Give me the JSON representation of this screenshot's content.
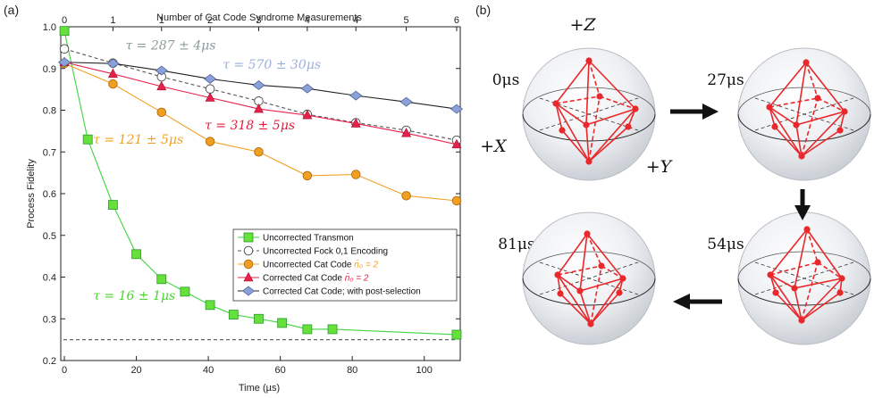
{
  "panel_a_label": "(a)",
  "panel_b_label": "(b)",
  "chart_data": {
    "type": "line",
    "title": "",
    "xlabel": "Time (µs)",
    "ylabel": "Process Fidelity",
    "top_xlabel": "Number of Cat Code Syndrome Measurements",
    "xlim": [
      -1,
      110
    ],
    "ylim": [
      0.2,
      1.0
    ],
    "xticks": [
      0,
      20,
      40,
      60,
      80,
      100
    ],
    "yticks": [
      0.2,
      0.3,
      0.4,
      0.5,
      0.6,
      0.7,
      0.8,
      0.9,
      1.0
    ],
    "top_ticks": [
      {
        "t": 0,
        "label": "0"
      },
      {
        "t": 13.5,
        "label": "1"
      },
      {
        "t": 27,
        "label": "1"
      },
      {
        "t": 40.5,
        "label": "2"
      },
      {
        "t": 54,
        "label": "3"
      },
      {
        "t": 67.5,
        "label": "4"
      },
      {
        "t": 81,
        "label": "4"
      },
      {
        "t": 95,
        "label": "5"
      },
      {
        "t": 109,
        "label": "6"
      }
    ],
    "baseline": 0.25,
    "legend_position": "lower-right",
    "series": [
      {
        "name": "Uncorrected Transmon",
        "color": "#3fd43f",
        "marker": "square",
        "fill": "#66e03a",
        "dashed": false,
        "x": [
          0,
          6.5,
          13.5,
          20,
          27,
          33.5,
          40.5,
          47,
          54,
          60.5,
          67.5,
          74.5,
          109
        ],
        "y": [
          0.99,
          0.73,
          0.573,
          0.455,
          0.395,
          0.365,
          0.333,
          0.31,
          0.3,
          0.29,
          0.275,
          0.275,
          0.262
        ]
      },
      {
        "name": "Uncorrected Fock 0,1 Encoding",
        "color": "#555555",
        "marker": "circle",
        "fill": "#ffffff",
        "dashed": true,
        "x": [
          0,
          13.5,
          27,
          40.5,
          54,
          67.5,
          81,
          95,
          109
        ],
        "y": [
          0.947,
          0.913,
          0.88,
          0.851,
          0.822,
          0.79,
          0.77,
          0.752,
          0.728
        ]
      },
      {
        "name": "Uncorrected Cat Code",
        "name_math": "n̄₀ = 2",
        "math_color": "#f0a020",
        "color": "#f0a020",
        "marker": "circle",
        "fill": "#f0a020",
        "dashed": false,
        "x": [
          0,
          13.5,
          27,
          40.5,
          54,
          67.5,
          81,
          95,
          109
        ],
        "y": [
          0.912,
          0.863,
          0.795,
          0.725,
          0.7,
          0.643,
          0.646,
          0.595,
          0.583
        ]
      },
      {
        "name": "Corrected Cat Code",
        "name_math": "n̄₀ = 2",
        "math_color": "#e8204a",
        "color": "#e8204a",
        "marker": "triangle",
        "fill": "#e8204a",
        "dashed": false,
        "x": [
          0,
          13.5,
          27,
          40.5,
          54,
          67.5,
          81,
          95,
          109
        ],
        "y": [
          0.915,
          0.887,
          0.857,
          0.83,
          0.803,
          0.788,
          0.768,
          0.745,
          0.718
        ]
      },
      {
        "name": "Corrected Cat Code; with post-selection",
        "color": "#222222",
        "marker": "diamond",
        "fill": "#8aa0d8",
        "dashed": false,
        "x": [
          0,
          13.5,
          27,
          40.5,
          54,
          67.5,
          81,
          95,
          109
        ],
        "y": [
          0.915,
          0.912,
          0.895,
          0.875,
          0.86,
          0.852,
          0.835,
          0.82,
          0.803
        ]
      }
    ],
    "annotations": [
      {
        "text": "τ = 287 ± 4μs",
        "color": "#8b9a9a",
        "x": 17,
        "y": 0.945
      },
      {
        "text": "τ = 570 ± 30μs",
        "color": "#9bb0dc",
        "x": 44,
        "y": 0.9
      },
      {
        "text": "τ = 318 ± 5μs",
        "color": "#e0203c",
        "x": 39,
        "y": 0.754
      },
      {
        "text": "τ = 121 ± 5μs",
        "color": "#f0a020",
        "x": 8,
        "y": 0.72
      },
      {
        "text": "τ = 16 ± 1μs",
        "color": "#49d42f",
        "x": 8,
        "y": 0.345
      }
    ]
  },
  "bloch": {
    "axis_z": "+Z",
    "axis_x": "+X",
    "axis_y": "+Y",
    "times": [
      "0μs",
      "27μs",
      "54μs",
      "81μs"
    ]
  }
}
